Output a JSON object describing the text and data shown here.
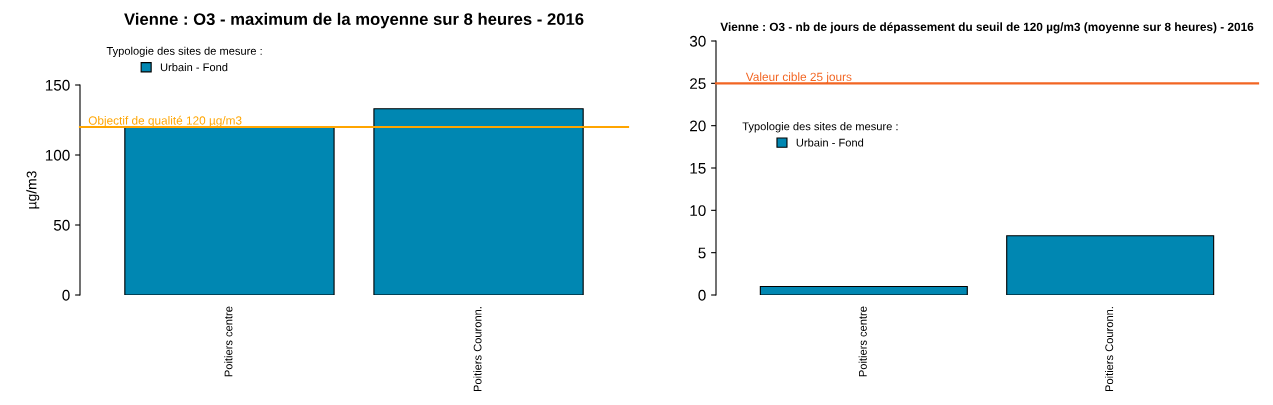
{
  "chart_data": [
    {
      "type": "bar",
      "title": "Vienne : O3 - maximum de la moyenne sur 8 heures - 2016",
      "ylabel": "µg/m3",
      "legend_title": "Typologie des sites de mesure :",
      "legend": "top left",
      "categories": [
        "Poitiers centre",
        "Poitiers Couronn."
      ],
      "series": [
        {
          "name": "Urbain - Fond",
          "color": "#0087b2",
          "values": [
            120,
            133
          ]
        }
      ],
      "ylim": [
        0,
        150
      ],
      "yticks": [
        0,
        50,
        100,
        150
      ],
      "ref_lines": [
        {
          "axis": "y",
          "value": 120,
          "label": "Objectif de qualité 120 µg/m3",
          "color": "#ffa500"
        }
      ]
    },
    {
      "type": "bar",
      "title": "Vienne : O3 - nb de jours de dépassement du seuil de 120 µg/m3 (moyenne sur 8 heures) - 2016",
      "legend_title": "Typologie des sites de mesure :",
      "legend": "top left",
      "categories": [
        "Poitiers centre",
        "Poitiers Couronn."
      ],
      "series": [
        {
          "name": "Urbain - Fond",
          "color": "#0087b2",
          "values": [
            1,
            7
          ]
        }
      ],
      "ylim": [
        0,
        30
      ],
      "yticks": [
        0,
        5,
        10,
        15,
        20,
        25,
        30
      ],
      "ref_lines": [
        {
          "axis": "y",
          "value": 25,
          "label": "Valeur cible 25 jours",
          "color": "#f26522"
        }
      ]
    }
  ]
}
